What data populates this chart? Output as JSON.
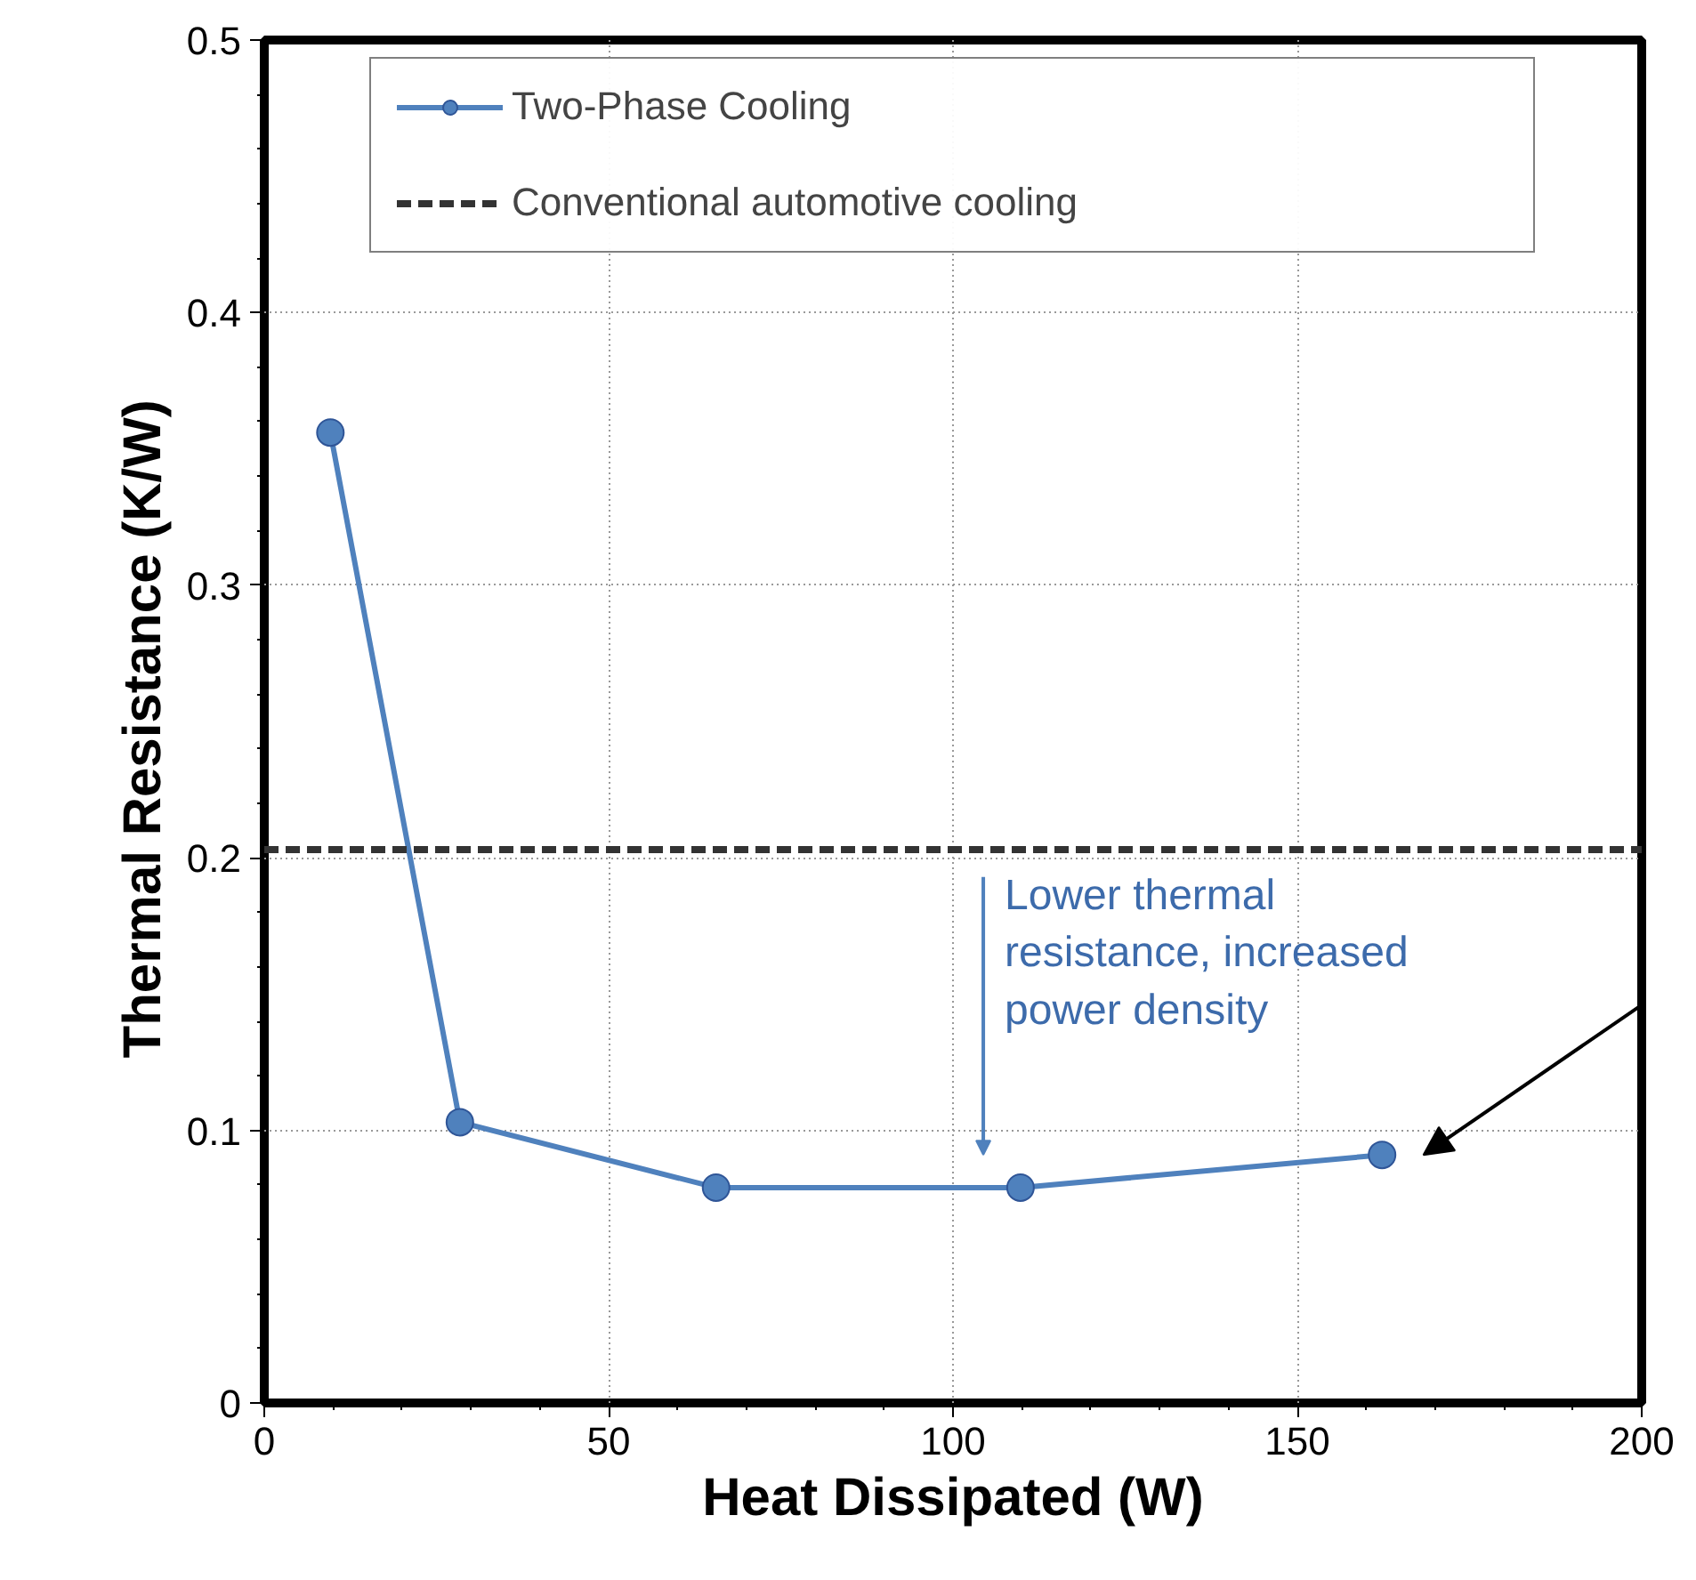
{
  "chart_data": {
    "type": "line",
    "xlabel": "Heat Dissipated (W)",
    "ylabel": "Thermal Resistance  (K/W)",
    "x": [
      9.6,
      28.4,
      65.6,
      109.8,
      162.3
    ],
    "series": [
      {
        "name": "Two-Phase Cooling",
        "color": "#4f81bd",
        "values": [
          0.356,
          0.103,
          0.079,
          0.079,
          0.091
        ]
      }
    ],
    "ref_lines": [
      {
        "axis": "y",
        "value": 0.203,
        "label": "Conventional automotive cooling",
        "color": "#333333",
        "line_style": "dashed"
      }
    ],
    "annotations": [
      "Lower thermal resistance, increased power density"
    ],
    "xlim": [
      0,
      200
    ],
    "ylim": [
      0,
      0.5
    ],
    "xticks": [
      0,
      50,
      100,
      150,
      200
    ],
    "yticks": [
      0,
      {
        "value": 0.1,
        "label": "0.1"
      },
      {
        "value": 0.2,
        "label": "0.2"
      },
      {
        "value": 0.3,
        "label": "0.3"
      },
      {
        "value": 0.4,
        "label": "0.4"
      },
      {
        "value": 0.5,
        "label": "0.5"
      }
    ],
    "grid": true,
    "legend": "top",
    "marker": "circle",
    "line_style": "solid"
  }
}
